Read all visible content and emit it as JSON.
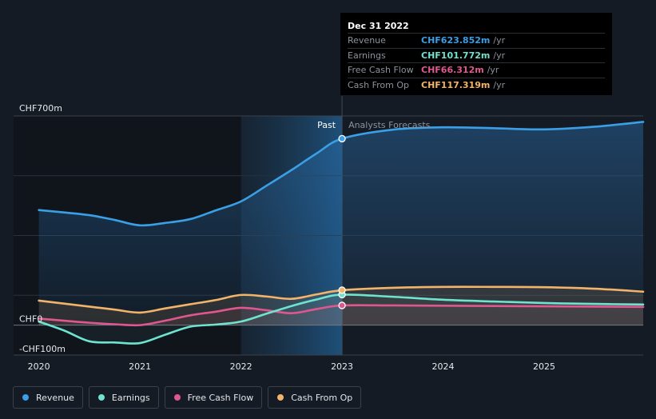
{
  "tooltip": {
    "date": "Dec 31 2022",
    "rows": [
      {
        "label": "Revenue",
        "value": "CHF623.852m",
        "unit": "/yr",
        "color": "#3b9fe6"
      },
      {
        "label": "Earnings",
        "value": "CHF101.772m",
        "unit": "/yr",
        "color": "#6fe3cf"
      },
      {
        "label": "Free Cash Flow",
        "value": "CHF66.312m",
        "unit": "/yr",
        "color": "#e0578f"
      },
      {
        "label": "Cash From Op",
        "value": "CHF117.319m",
        "unit": "/yr",
        "color": "#f2b36b"
      }
    ]
  },
  "legend": [
    {
      "label": "Revenue",
      "color": "#3b9fe6"
    },
    {
      "label": "Earnings",
      "color": "#6fe3cf"
    },
    {
      "label": "Free Cash Flow",
      "color": "#e0578f"
    },
    {
      "label": "Cash From Op",
      "color": "#f2b36b"
    }
  ],
  "chart_data": {
    "type": "line",
    "y_unit": "CHF m",
    "ylim": [
      -100,
      700
    ],
    "y_tick_labels": [
      {
        "value": 700,
        "label": "CHF700m"
      },
      {
        "value": 0,
        "label": "CHF0"
      },
      {
        "value": -100,
        "label": "-CHF100m"
      }
    ],
    "xlim": [
      2019.75,
      2025.98
    ],
    "x_ticks": [
      2020,
      2021,
      2022,
      2023,
      2024,
      2025
    ],
    "x_tick_labels": [
      "2020",
      "2021",
      "2022",
      "2023",
      "2024",
      "2025"
    ],
    "divider_x": 2023.0,
    "past_label": "Past",
    "forecast_label": "Analysts Forecasts",
    "series": [
      {
        "name": "Revenue",
        "color": "#3b9fe6",
        "x": [
          2020.0,
          2020.25,
          2020.5,
          2020.75,
          2021.0,
          2021.25,
          2021.5,
          2021.75,
          2022.0,
          2022.25,
          2022.5,
          2022.75,
          2023.0,
          2023.5,
          2024.0,
          2024.5,
          2025.0,
          2025.5,
          2025.98
        ],
        "y": [
          385,
          377,
          368,
          352,
          334,
          342,
          355,
          384,
          414,
          466,
          519,
          575,
          624,
          654,
          662,
          659,
          655,
          664,
          680
        ]
      },
      {
        "name": "Earnings",
        "color": "#6fe3cf",
        "x": [
          2020.0,
          2020.25,
          2020.5,
          2020.75,
          2021.0,
          2021.25,
          2021.5,
          2021.75,
          2022.0,
          2022.25,
          2022.5,
          2022.75,
          2023.0,
          2023.5,
          2024.0,
          2024.5,
          2025.0,
          2025.5,
          2025.98
        ],
        "y": [
          12,
          -18,
          -54,
          -58,
          -60,
          -32,
          -5,
          2,
          12,
          38,
          64,
          86,
          102,
          95,
          85,
          79,
          74,
          71,
          69
        ]
      },
      {
        "name": "Free Cash Flow",
        "color": "#e0578f",
        "x": [
          2020.0,
          2020.25,
          2020.5,
          2020.75,
          2021.0,
          2021.25,
          2021.5,
          2021.75,
          2022.0,
          2022.25,
          2022.5,
          2022.75,
          2023.0,
          2023.5,
          2024.0,
          2024.5,
          2025.0,
          2025.5,
          2025.98
        ],
        "y": [
          22,
          15,
          8,
          3,
          0,
          15,
          33,
          45,
          58,
          50,
          40,
          54,
          66,
          66,
          65,
          64,
          63,
          62,
          61
        ]
      },
      {
        "name": "Cash From Op",
        "color": "#f2b36b",
        "x": [
          2020.0,
          2020.25,
          2020.5,
          2020.75,
          2021.0,
          2021.25,
          2021.5,
          2021.75,
          2022.0,
          2022.25,
          2022.5,
          2022.75,
          2023.0,
          2023.5,
          2024.0,
          2024.5,
          2025.0,
          2025.5,
          2025.98
        ],
        "y": [
          82,
          72,
          62,
          52,
          42,
          56,
          70,
          84,
          101,
          96,
          88,
          103,
          117,
          125,
          128,
          128,
          127,
          122,
          112
        ]
      }
    ]
  }
}
